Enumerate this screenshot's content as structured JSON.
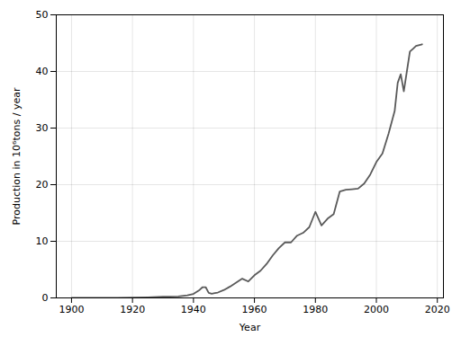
{
  "chart_data": {
    "type": "line",
    "x": [
      1900,
      1905,
      1910,
      1915,
      1920,
      1925,
      1930,
      1935,
      1938,
      1940,
      1942,
      1943,
      1944,
      1945,
      1946,
      1947,
      1948,
      1950,
      1952,
      1954,
      1956,
      1958,
      1960,
      1962,
      1964,
      1966,
      1968,
      1970,
      1972,
      1974,
      1976,
      1978,
      1980,
      1982,
      1984,
      1986,
      1988,
      1990,
      1992,
      1994,
      1996,
      1998,
      2000,
      2002,
      2004,
      2006,
      2007,
      2008,
      2009,
      2010,
      2011,
      2012,
      2013,
      2015
    ],
    "values": [
      0.0,
      0.0,
      0.0,
      0.01,
      0.05,
      0.1,
      0.2,
      0.25,
      0.45,
      0.7,
      1.4,
      1.9,
      1.9,
      0.9,
      0.75,
      0.85,
      0.95,
      1.4,
      2.0,
      2.7,
      3.4,
      2.9,
      4.0,
      4.8,
      6.0,
      7.5,
      8.8,
      9.8,
      9.8,
      11.0,
      11.5,
      12.5,
      15.2,
      12.8,
      14.0,
      14.8,
      18.8,
      19.1,
      19.2,
      19.3,
      20.2,
      21.8,
      24.0,
      25.5,
      29.0,
      33.0,
      38.0,
      39.5,
      36.5,
      40.0,
      43.5,
      44.0,
      44.5,
      44.8
    ],
    "color": "#5a5a5a",
    "xlabel": "Year",
    "ylabel": "Production in 10⁶tons / year",
    "xlim": [
      1895,
      2022
    ],
    "ylim": [
      0,
      50
    ],
    "xticks": [
      1900,
      1920,
      1940,
      1960,
      1980,
      2000,
      2020
    ],
    "yticks": [
      0,
      10,
      20,
      30,
      40,
      50
    ],
    "grid": true
  }
}
